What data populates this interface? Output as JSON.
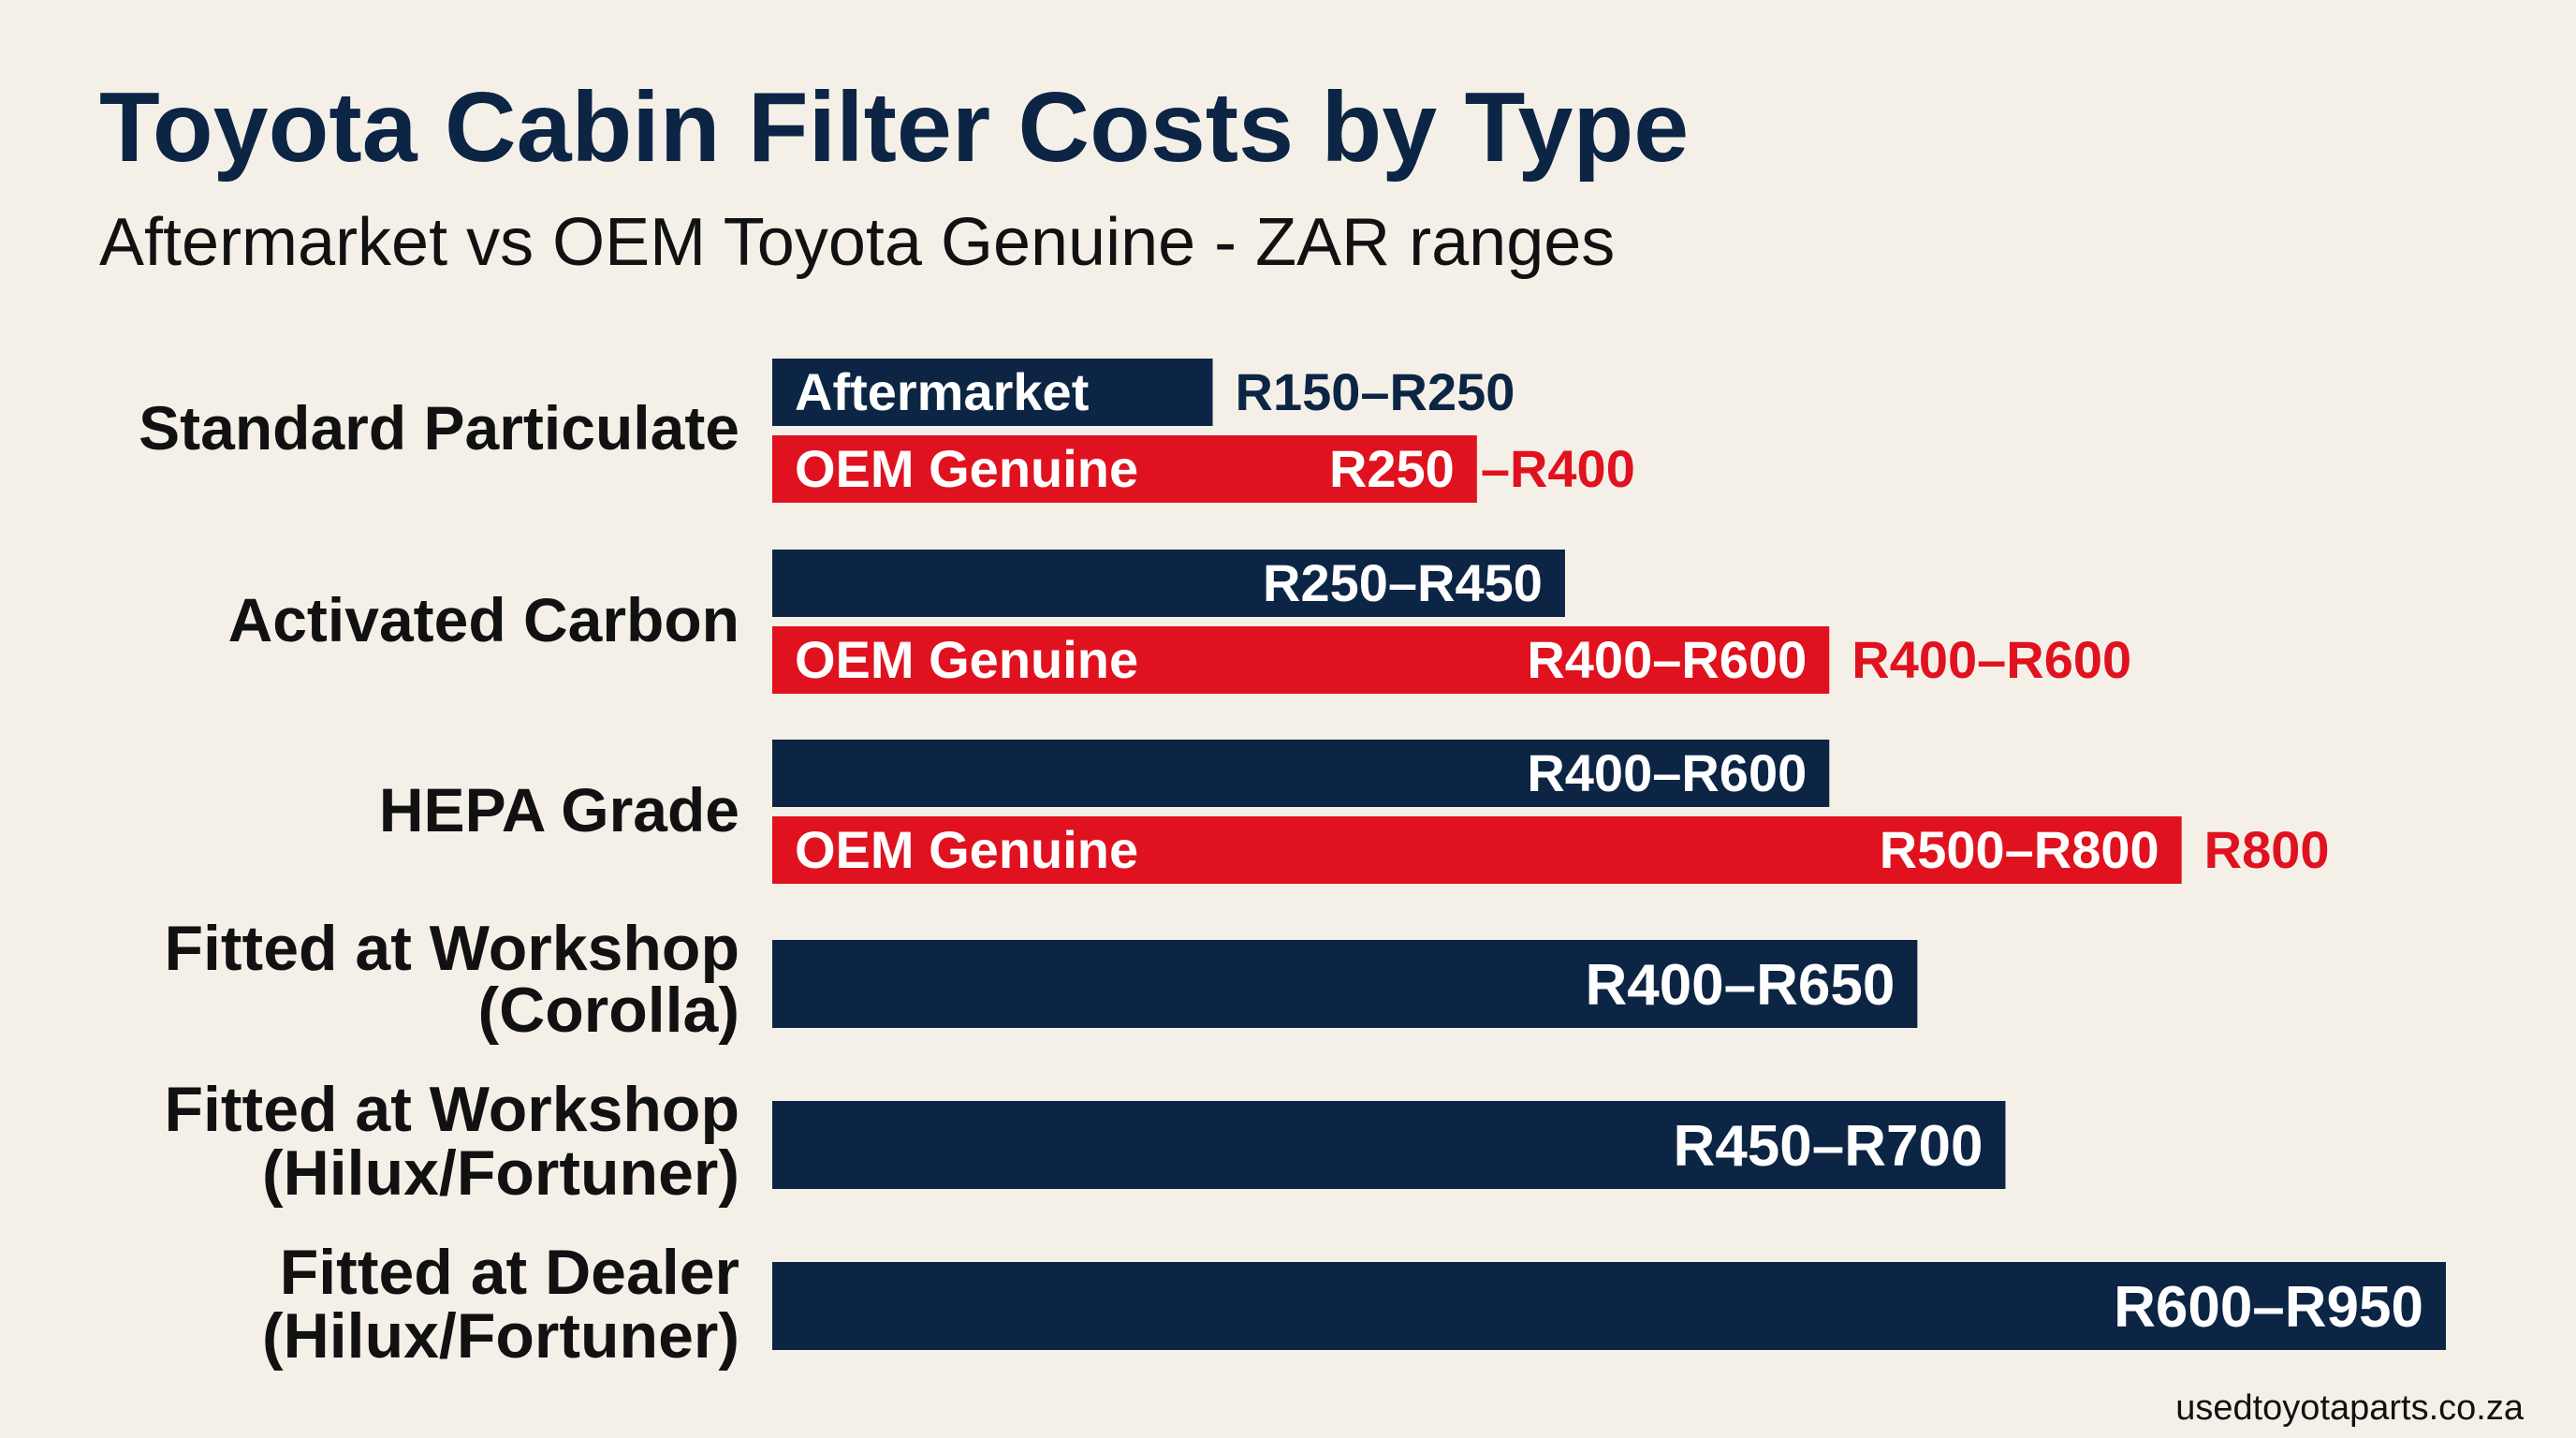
{
  "chart_data": {
    "type": "bar",
    "title": "Toyota Cabin Filter Costs by Type",
    "subtitle": "Aftermarket vs OEM Toyota Genuine - ZAR ranges",
    "series_colors": {
      "aftermarket": "#0d2545",
      "oem": "#e0121f"
    },
    "xlim": [
      0,
      950
    ],
    "groups": [
      {
        "category": [
          "Standard Particulate"
        ],
        "bars": [
          {
            "series": "aftermarket",
            "tag": "Aftermarket",
            "range": [
              150,
              250
            ],
            "label": "R150–R250",
            "value": 250,
            "outside_label": ""
          },
          {
            "series": "oem",
            "tag": "OEM Genuine",
            "range": [
              250,
              400
            ],
            "label": "R250",
            "value": 400,
            "outside_label": "–R400"
          }
        ]
      },
      {
        "category": [
          "Activated Carbon"
        ],
        "bars": [
          {
            "series": "aftermarket",
            "tag": "",
            "range": [
              250,
              450
            ],
            "label": "R250–R450",
            "value": 450,
            "outside_label": ""
          },
          {
            "series": "oem",
            "tag": "OEM Genuine",
            "range": [
              400,
              600
            ],
            "label": "R400–R600",
            "value": 600,
            "outside_label": "R400–R600"
          }
        ]
      },
      {
        "category": [
          "HEPA Grade"
        ],
        "bars": [
          {
            "series": "aftermarket",
            "tag": "",
            "range": [
              400,
              600
            ],
            "label": "R400–R600",
            "value": 600,
            "outside_label": ""
          },
          {
            "series": "oem",
            "tag": "OEM Genuine",
            "range": [
              500,
              800
            ],
            "label": "R500–R800",
            "value": 800,
            "outside_label": "R800"
          }
        ]
      },
      {
        "category": [
          "Fitted at Workshop",
          "(Corolla)"
        ],
        "bars": [
          {
            "series": "aftermarket",
            "tag": "",
            "range": [
              400,
              650
            ],
            "label": "R400–R650",
            "value": 650,
            "outside_label": ""
          }
        ]
      },
      {
        "category": [
          "Fitted at Workshop",
          "(Hilux/Fortuner)"
        ],
        "bars": [
          {
            "series": "aftermarket",
            "tag": "",
            "range": [
              450,
              700
            ],
            "label": "R450–R700",
            "value": 700,
            "outside_label": ""
          }
        ]
      },
      {
        "category": [
          "Fitted at Dealer",
          "(Hilux/Fortuner)"
        ],
        "bars": [
          {
            "series": "aftermarket",
            "tag": "",
            "range": [
              600,
              950
            ],
            "label": "R600–R950",
            "value": 950,
            "outside_label": ""
          }
        ]
      }
    ]
  },
  "source": "usedtoyotaparts.co.za"
}
